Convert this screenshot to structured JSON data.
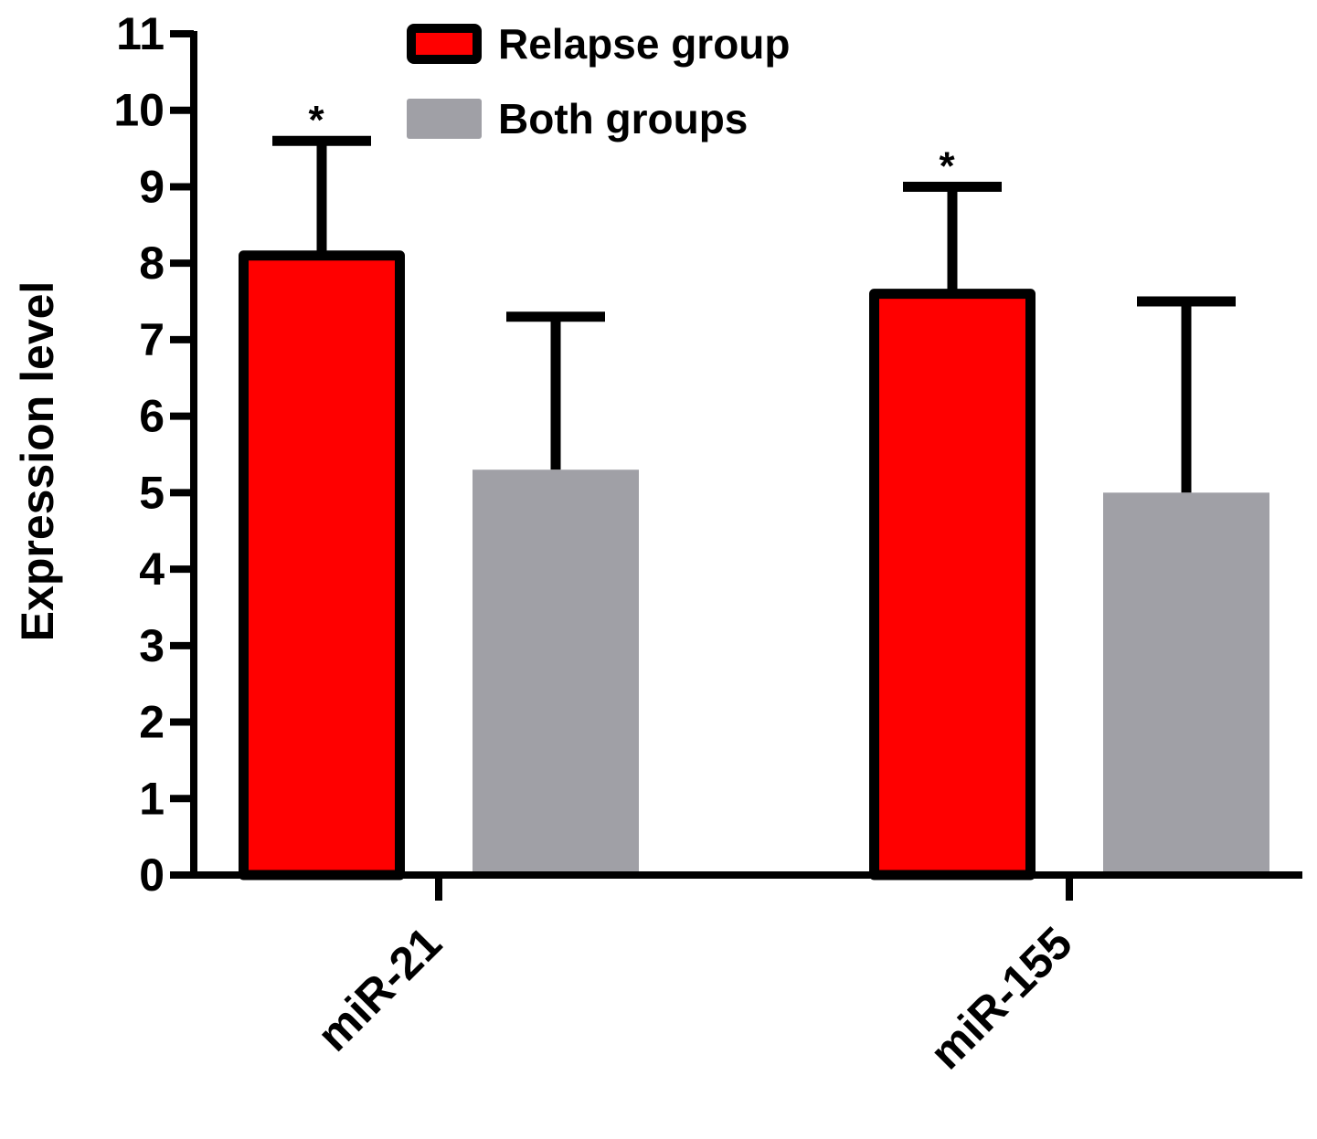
{
  "chart_data": {
    "type": "bar",
    "title": "",
    "xlabel": "",
    "ylabel": "Expression level",
    "ylim": [
      0,
      11
    ],
    "yticks": [
      0,
      1,
      2,
      3,
      4,
      5,
      6,
      7,
      8,
      9,
      10,
      11
    ],
    "ytick_labels": [
      "0",
      "1",
      "2",
      "3",
      "4",
      "5",
      "6",
      "7",
      "8",
      "9",
      "10",
      "11"
    ],
    "categories": [
      "miR-21",
      "miR-155"
    ],
    "series": [
      {
        "name": "Relapse group",
        "color": "#ff0000",
        "outlined": true,
        "values": [
          8.1,
          7.6
        ],
        "error": [
          1.5,
          1.4
        ],
        "significance": [
          "*",
          "*"
        ]
      },
      {
        "name": "Both groups",
        "color": "#a0a0a6",
        "outlined": false,
        "values": [
          5.3,
          5.0
        ],
        "error": [
          2.0,
          2.5
        ],
        "significance": [
          "",
          ""
        ]
      }
    ],
    "legend_position": "top-center",
    "grid": false
  }
}
